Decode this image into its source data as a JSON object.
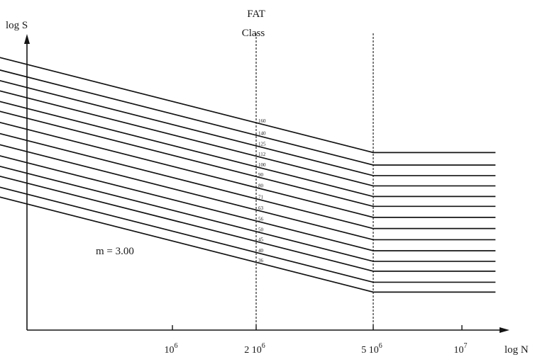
{
  "chart_data": {
    "type": "line",
    "header": {
      "line1": "FAT",
      "line2": "Class"
    },
    "y_axis_label": "log S",
    "x_axis_label": "log N",
    "x_ticks": [
      {
        "value": 1000000,
        "base": "10",
        "exp": "6",
        "label": "10^6"
      },
      {
        "value": 2000000,
        "base": "2 10",
        "exp": "6",
        "label": "2 10^6"
      },
      {
        "value": 5000000,
        "base": "5 10",
        "exp": "6",
        "label": "5 10^6"
      },
      {
        "value": 10000000,
        "base": "10",
        "exp": "7",
        "label": "10^7"
      }
    ],
    "x_scale": "log",
    "reference_lines_x": [
      2000000,
      5000000
    ],
    "slope_label": "m = 3.00",
    "slope_m": 3.0,
    "knee_x": 5000000,
    "x_start": 140000,
    "x_end": 13000000,
    "classes": [
      160,
      140,
      125,
      112,
      100,
      90,
      80,
      71,
      63,
      56,
      50,
      45,
      40,
      36
    ],
    "class_labels": [
      "160",
      "140",
      "125",
      "112",
      "100",
      "90",
      "80",
      "71",
      "63",
      "56",
      "50",
      "45",
      "40",
      "36"
    ]
  }
}
